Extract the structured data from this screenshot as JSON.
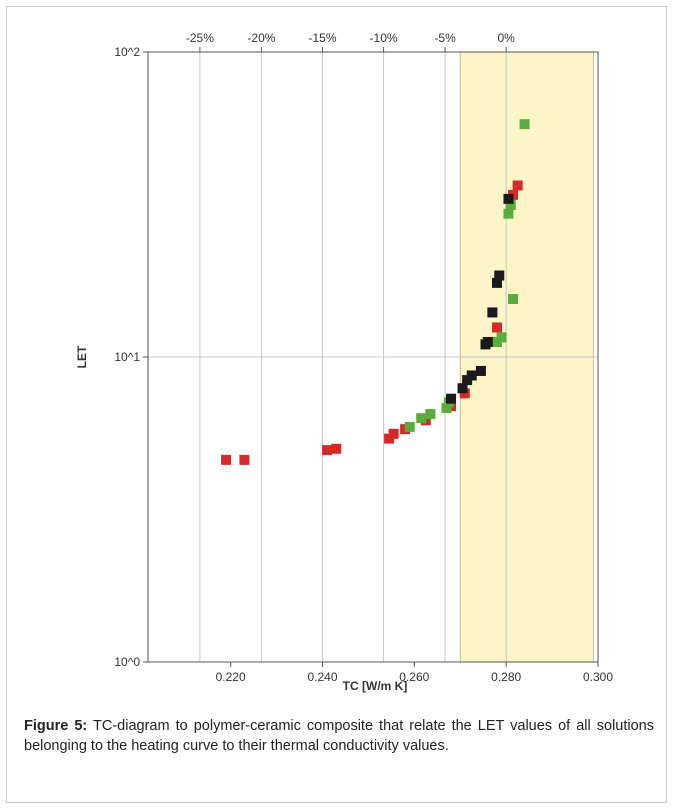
{
  "chart_data": {
    "type": "scatter",
    "title": "",
    "xlabel": "TC [W/m K]",
    "ylabel": "LET",
    "x_scale": "linear",
    "y_scale": "log",
    "xlim": [
      0.202,
      0.3
    ],
    "ylim": [
      1,
      100
    ],
    "x_ticks": [
      0.22,
      0.24,
      0.26,
      0.28,
      0.3
    ],
    "x_tick_labels": [
      "0.220",
      "0.240",
      "0.260",
      "0.280",
      "0.300"
    ],
    "y_ticks": [
      1,
      10,
      100
    ],
    "y_tick_labels": [
      "10^0",
      "10^1",
      "10^2"
    ],
    "top_axis_ticks": [
      0.2133,
      0.2267,
      0.24,
      0.2533,
      0.2667,
      0.28
    ],
    "top_axis_labels": [
      "-25%",
      "-20%",
      "-15%",
      "-10%",
      "-5%",
      "0%"
    ],
    "highlight_region_x": [
      0.27,
      0.299
    ],
    "grid": true,
    "series": [
      {
        "color": "#d42a2a",
        "points": [
          [
            0.219,
            4.6
          ],
          [
            0.223,
            4.6
          ],
          [
            0.241,
            4.95
          ],
          [
            0.243,
            5.0
          ],
          [
            0.2545,
            5.4
          ],
          [
            0.2555,
            5.6
          ],
          [
            0.258,
            5.8
          ],
          [
            0.2625,
            6.2
          ],
          [
            0.268,
            6.9
          ],
          [
            0.271,
            7.6
          ],
          [
            0.278,
            12.5
          ],
          [
            0.2815,
            34.0
          ],
          [
            0.2825,
            36.5
          ]
        ]
      },
      {
        "color": "#5aad3c",
        "points": [
          [
            0.259,
            5.9
          ],
          [
            0.2615,
            6.3
          ],
          [
            0.2635,
            6.5
          ],
          [
            0.267,
            6.8
          ],
          [
            0.2675,
            7.1
          ],
          [
            0.278,
            11.2
          ],
          [
            0.279,
            11.6
          ],
          [
            0.2805,
            29.5
          ],
          [
            0.281,
            31.5
          ],
          [
            0.2815,
            15.5
          ],
          [
            0.284,
            58.0
          ]
        ]
      },
      {
        "color": "#1a1a1a",
        "points": [
          [
            0.268,
            7.3
          ],
          [
            0.2705,
            7.9
          ],
          [
            0.2715,
            8.4
          ],
          [
            0.2725,
            8.7
          ],
          [
            0.2745,
            9.0
          ],
          [
            0.2755,
            11.0
          ],
          [
            0.276,
            11.2
          ],
          [
            0.277,
            14.0
          ],
          [
            0.278,
            17.5
          ],
          [
            0.2785,
            18.5
          ],
          [
            0.2805,
            33.0
          ]
        ]
      }
    ]
  },
  "caption": {
    "label": "Figure 5:",
    "text": " TC-diagram to polymer-ceramic composite that relate the LET values of all solutions belonging to the heating curve to their thermal conductivity values."
  }
}
